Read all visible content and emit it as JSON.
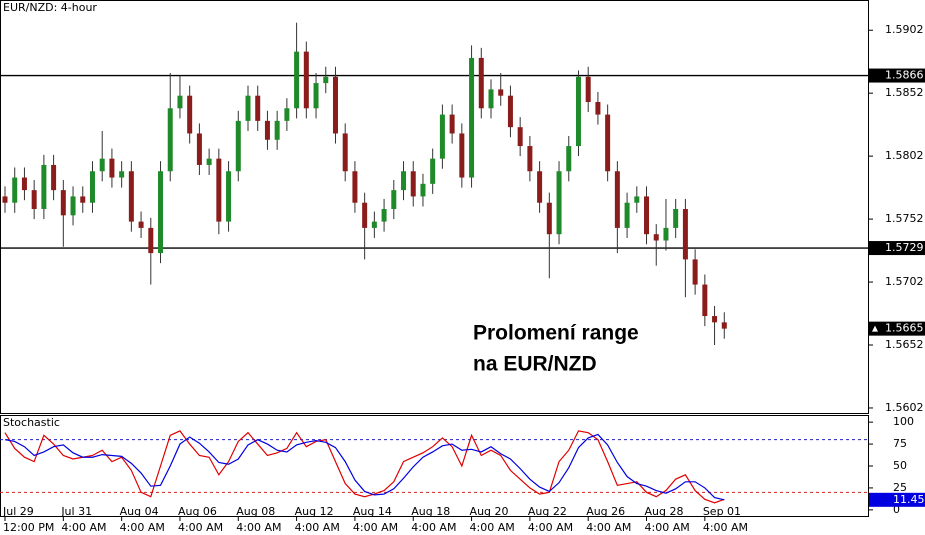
{
  "chart_data": [
    {
      "type": "candlestick",
      "title": "EUR/NZD: 4-hour",
      "annotation": [
        "Prolomení range",
        "na EUR/NZD"
      ],
      "categories": [
        "Jul 29",
        null,
        null,
        null,
        null,
        null,
        "Jul 31",
        null,
        null,
        null,
        null,
        null,
        "Aug 04",
        null,
        null,
        null,
        null,
        null,
        "Aug 06",
        null,
        null,
        null,
        null,
        null,
        "Aug 08",
        null,
        null,
        null,
        null,
        null,
        "Aug 12",
        null,
        null,
        null,
        null,
        null,
        "Aug 14",
        null,
        null,
        null,
        null,
        null,
        "Aug 18",
        null,
        null,
        null,
        null,
        null,
        "Aug 20",
        null,
        null,
        null,
        null,
        null,
        "Aug 22",
        null,
        null,
        null,
        null,
        null,
        "Aug 26",
        null,
        null,
        null,
        null,
        null,
        "Aug 28",
        null,
        null,
        null,
        null,
        null,
        "Sep 01",
        null,
        null
      ],
      "category_times": [
        "12:00 PM",
        null,
        null,
        null,
        null,
        null,
        "4:00 AM",
        null,
        null,
        null,
        null,
        null,
        "4:00 AM",
        null,
        null,
        null,
        null,
        null,
        "4:00 AM",
        null,
        null,
        null,
        null,
        null,
        "4:00 AM",
        null,
        null,
        null,
        null,
        null,
        "4:00 AM",
        null,
        null,
        null,
        null,
        null,
        "4:00 AM",
        null,
        null,
        null,
        null,
        null,
        "4:00 AM",
        null,
        null,
        null,
        null,
        null,
        "4:00 AM",
        null,
        null,
        null,
        null,
        null,
        "4:00 AM",
        null,
        null,
        null,
        null,
        null,
        "4:00 AM",
        null,
        null,
        null,
        null,
        null,
        "4:00 AM",
        null,
        null,
        null,
        null,
        null,
        "4:00 AM",
        null,
        null
      ],
      "open": [
        1.577,
        1.5765,
        1.5785,
        1.5775,
        1.576,
        1.5795,
        1.5775,
        1.5755,
        1.577,
        1.5765,
        1.579,
        1.58,
        1.5785,
        1.579,
        1.575,
        1.5745,
        1.5725,
        1.579,
        1.584,
        1.585,
        1.582,
        1.5795,
        1.58,
        1.575,
        1.579,
        1.583,
        1.585,
        1.583,
        1.5815,
        1.583,
        1.584,
        1.5885,
        1.584,
        1.586,
        1.5865,
        1.582,
        1.579,
        1.5765,
        1.5745,
        1.575,
        1.576,
        1.5775,
        1.579,
        1.577,
        1.578,
        1.58,
        1.5835,
        1.582,
        1.5785,
        1.588,
        1.584,
        1.5855,
        1.585,
        1.5825,
        1.581,
        1.579,
        1.5765,
        1.574,
        1.579,
        1.581,
        1.5865,
        1.5845,
        1.5835,
        1.579,
        1.5745,
        1.5765,
        1.577,
        1.574,
        1.5735,
        1.5745,
        1.576,
        1.572,
        1.57,
        1.5675,
        1.567
      ],
      "high": [
        1.5778,
        1.5793,
        1.5793,
        1.5783,
        1.5803,
        1.5803,
        1.5783,
        1.5778,
        1.5778,
        1.5798,
        1.5822,
        1.5808,
        1.5798,
        1.5798,
        1.5758,
        1.5753,
        1.5798,
        1.5868,
        1.5866,
        1.5858,
        1.5828,
        1.5808,
        1.5808,
        1.5798,
        1.5838,
        1.5858,
        1.5858,
        1.5838,
        1.5838,
        1.5848,
        1.5908,
        1.5893,
        1.5868,
        1.5873,
        1.5873,
        1.5828,
        1.5798,
        1.5773,
        1.5758,
        1.5768,
        1.5783,
        1.5798,
        1.5798,
        1.5788,
        1.5808,
        1.5843,
        1.5843,
        1.5828,
        1.589,
        1.5888,
        1.5863,
        1.5868,
        1.5858,
        1.5833,
        1.5818,
        1.5798,
        1.5773,
        1.5798,
        1.5818,
        1.587,
        1.5873,
        1.5853,
        1.5843,
        1.5798,
        1.5773,
        1.5778,
        1.5778,
        1.5748,
        1.5768,
        1.5768,
        1.5768,
        1.5728,
        1.5708,
        1.5683,
        1.5678
      ],
      "low": [
        1.5757,
        1.5757,
        1.5767,
        1.5752,
        1.5752,
        1.5767,
        1.573,
        1.5747,
        1.5757,
        1.5757,
        1.5782,
        1.5777,
        1.5777,
        1.5742,
        1.5737,
        1.57,
        1.5717,
        1.5782,
        1.5832,
        1.5812,
        1.5787,
        1.5787,
        1.574,
        1.5742,
        1.5782,
        1.5822,
        1.5822,
        1.5807,
        1.5807,
        1.5822,
        1.5832,
        1.5832,
        1.5832,
        1.5852,
        1.5812,
        1.5782,
        1.5757,
        1.572,
        1.5737,
        1.5742,
        1.5752,
        1.5767,
        1.5762,
        1.5762,
        1.5772,
        1.5792,
        1.5812,
        1.5777,
        1.5777,
        1.5832,
        1.5832,
        1.5842,
        1.5817,
        1.5802,
        1.5782,
        1.5757,
        1.5705,
        1.5732,
        1.5782,
        1.5802,
        1.5837,
        1.5827,
        1.5782,
        1.5725,
        1.5737,
        1.5757,
        1.5732,
        1.5715,
        1.5727,
        1.5737,
        1.569,
        1.5692,
        1.5667,
        1.5652,
        1.5657
      ],
      "close": [
        1.5765,
        1.5785,
        1.5775,
        1.576,
        1.5795,
        1.5775,
        1.5755,
        1.577,
        1.5765,
        1.579,
        1.58,
        1.5785,
        1.579,
        1.575,
        1.5745,
        1.5725,
        1.579,
        1.584,
        1.585,
        1.582,
        1.5795,
        1.58,
        1.575,
        1.579,
        1.583,
        1.585,
        1.583,
        1.5815,
        1.583,
        1.584,
        1.5885,
        1.584,
        1.586,
        1.5865,
        1.582,
        1.579,
        1.5765,
        1.5745,
        1.575,
        1.576,
        1.5775,
        1.579,
        1.577,
        1.578,
        1.58,
        1.5835,
        1.582,
        1.5785,
        1.588,
        1.584,
        1.5855,
        1.585,
        1.5825,
        1.581,
        1.579,
        1.5765,
        1.574,
        1.579,
        1.581,
        1.5865,
        1.5845,
        1.5835,
        1.579,
        1.5745,
        1.5765,
        1.577,
        1.574,
        1.5735,
        1.5745,
        1.576,
        1.572,
        1.57,
        1.5675,
        1.567,
        1.5665
      ],
      "up_color": "#1f8a2a",
      "down_color": "#8b1c1c",
      "ylim": [
        1.5598,
        1.5926
      ],
      "yticks": [
        1.5602,
        1.5652,
        1.5702,
        1.5752,
        1.5802,
        1.5852,
        1.5902
      ],
      "levels": [
        1.5866,
        1.5729
      ]
    },
    {
      "type": "line",
      "title": "Stochastic",
      "series": [
        {
          "color": "#e00000",
          "values": [
            88,
            70,
            60,
            55,
            85,
            75,
            62,
            58,
            60,
            62,
            68,
            55,
            60,
            45,
            20,
            15,
            50,
            85,
            90,
            75,
            62,
            60,
            40,
            55,
            78,
            88,
            75,
            62,
            65,
            70,
            88,
            72,
            78,
            80,
            55,
            30,
            18,
            15,
            18,
            22,
            32,
            55,
            60,
            65,
            72,
            82,
            72,
            50,
            85,
            62,
            68,
            62,
            45,
            35,
            25,
            18,
            20,
            55,
            68,
            90,
            88,
            80,
            55,
            28,
            30,
            32,
            20,
            15,
            22,
            35,
            40,
            22,
            12,
            8,
            12
          ]
        },
        {
          "color": "#0000e0",
          "values": [
            80,
            78,
            72,
            62,
            66,
            72,
            74,
            65,
            60,
            60,
            63,
            62,
            61,
            53,
            42,
            27,
            28,
            50,
            75,
            83,
            76,
            66,
            54,
            52,
            58,
            74,
            80,
            75,
            68,
            66,
            74,
            77,
            79,
            77,
            71,
            55,
            34,
            21,
            17,
            18,
            24,
            36,
            49,
            60,
            66,
            73,
            75,
            68,
            69,
            66,
            72,
            64,
            58,
            47,
            35,
            26,
            21,
            31,
            48,
            71,
            82,
            86,
            74,
            54,
            38,
            30,
            27,
            22,
            19,
            24,
            32,
            32,
            25,
            14,
            11.45
          ]
        }
      ],
      "ylim": [
        -7,
        107
      ],
      "yticks": [
        0,
        25,
        50,
        75,
        100
      ],
      "levels": [
        {
          "value": 80,
          "color": "#2020c0"
        },
        {
          "value": 20,
          "color": "#d02020"
        }
      ]
    }
  ]
}
